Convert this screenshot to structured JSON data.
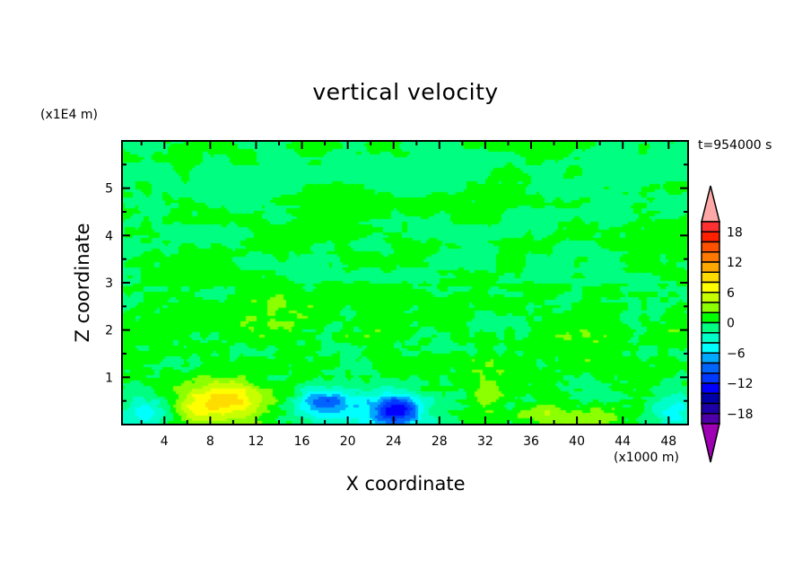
{
  "chart_data": {
    "type": "heatmap",
    "title": "vertical velocity",
    "xlabel": "X coordinate",
    "ylabel": "Z coordinate",
    "x_unit": "(x1000 m)",
    "y_unit": "(x1E4 m)",
    "time_label": "t=954000 s",
    "xlim": [
      0.3,
      49.7
    ],
    "ylim": [
      0,
      6
    ],
    "x_ticks": [
      4,
      8,
      12,
      16,
      20,
      24,
      28,
      32,
      36,
      40,
      44,
      48
    ],
    "y_ticks": [
      1,
      2,
      3,
      4,
      5
    ],
    "colorbar": {
      "levels_min": -20,
      "levels_max": 20,
      "step": 2,
      "tick_labels": [
        "18",
        "12",
        "6",
        "0",
        "-6",
        "-12",
        "-18"
      ],
      "tick_values": [
        18,
        12,
        6,
        0,
        -6,
        -12,
        -18
      ],
      "colors_top_to_bottom": [
        "#ff3030",
        "#ff2000",
        "#ff5000",
        "#ff7800",
        "#ffa800",
        "#ffdc00",
        "#ffff00",
        "#c8ff00",
        "#8cff00",
        "#00ff00",
        "#00ff80",
        "#00ffc8",
        "#00ffff",
        "#00a8ff",
        "#0064ff",
        "#0038ff",
        "#0000ff",
        "#0000a8",
        "#1e00a8",
        "#5000a8"
      ],
      "over_color": "#ffa8a8",
      "under_color": "#a000b4"
    },
    "features": [
      {
        "x": 10,
        "z": 0.5,
        "value": 7.5,
        "sx": 2.2,
        "sz": 0.3
      },
      {
        "x": 7,
        "z": 0.35,
        "value": 4,
        "sx": 1.5,
        "sz": 0.25
      },
      {
        "x": 17.8,
        "z": 0.45,
        "value": -9,
        "sx": 1.6,
        "sz": 0.22
      },
      {
        "x": 24.5,
        "z": 0.3,
        "value": -10,
        "sx": 1.4,
        "sz": 0.22
      },
      {
        "x": 22.5,
        "z": 0.3,
        "value": -5,
        "sx": 2.5,
        "sz": 0.3
      },
      {
        "x": 39,
        "z": 0.2,
        "value": 3.5,
        "sx": 3.5,
        "sz": 0.18
      },
      {
        "x": 32.3,
        "z": 0.65,
        "value": 4,
        "sx": 0.9,
        "sz": 0.25
      },
      {
        "x": 2,
        "z": 0.25,
        "value": -4,
        "sx": 1.8,
        "sz": 0.3
      },
      {
        "x": 48.5,
        "z": 0.3,
        "value": -4,
        "sx": 1.2,
        "sz": 0.3
      }
    ]
  }
}
